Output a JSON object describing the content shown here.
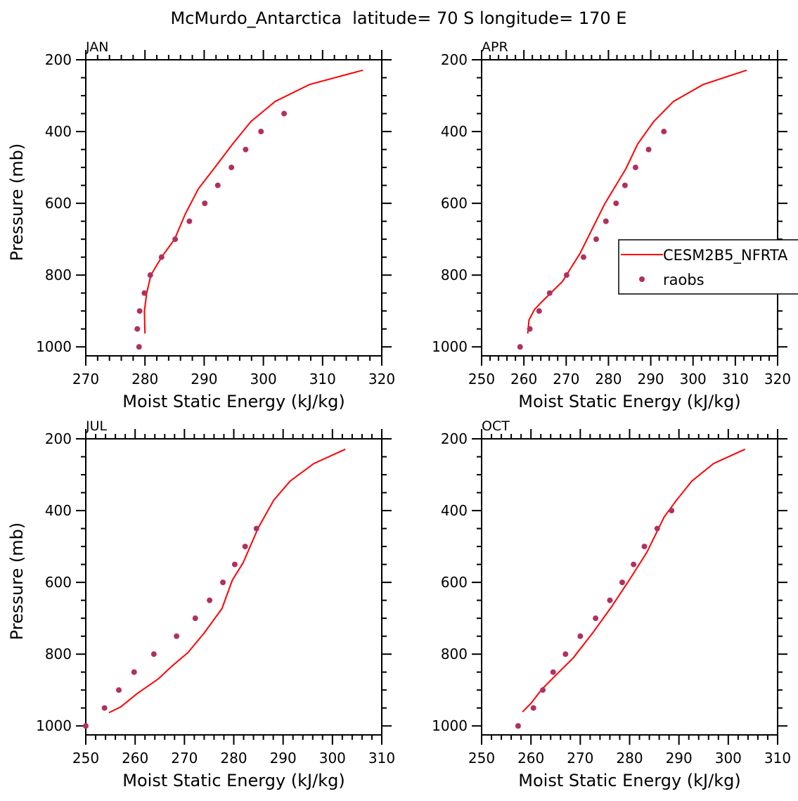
{
  "chart_data": {
    "title": "McMurdo_Antarctica  latitude= 70 S longitude= 170 E",
    "legend": {
      "placement": "right of APR panel",
      "entries": [
        {
          "label": "CESM2B5_NFRTA",
          "style": "line",
          "color": "#ff0000"
        },
        {
          "label": "raobs",
          "style": "marker",
          "color": "#b03060"
        }
      ]
    },
    "panels": [
      {
        "type": "line+scatter",
        "label": "JAN",
        "xlabel": "Moist Static Energy (kJ/kg)",
        "ylabel": "Pressure (mb)",
        "xlim": [
          270,
          320
        ],
        "xticks": [
          270,
          280,
          290,
          300,
          310,
          320
        ],
        "ylim": [
          200,
          1025
        ],
        "yticks": [
          200,
          400,
          600,
          800,
          1000
        ],
        "y_inverted": true,
        "model": {
          "x": [
            316.8,
            307.8,
            302.0,
            297.9,
            294.8,
            291.8,
            289.0,
            286.8,
            285.0,
            282.8,
            281.0,
            280.3,
            279.9,
            280.0
          ],
          "p": [
            229,
            269,
            316,
            372,
            435,
            500,
            560,
            630,
            700,
            750,
            800,
            850,
            900,
            963
          ]
        },
        "raobs": {
          "x": [
            303.5,
            299.6,
            297.0,
            294.6,
            292.3,
            290.1,
            287.5,
            285.1,
            282.8,
            280.9,
            279.9,
            279.1,
            278.7,
            279.0
          ],
          "p": [
            350,
            400,
            450,
            500,
            550,
            600,
            650,
            700,
            750,
            800,
            850,
            900,
            950,
            1000
          ]
        }
      },
      {
        "type": "line+scatter",
        "label": "APR",
        "xlabel": "Moist Static Energy (kJ/kg)",
        "ylabel": "",
        "xlim": [
          250,
          320
        ],
        "xticks": [
          250,
          260,
          270,
          280,
          290,
          300,
          310,
          320
        ],
        "ylim": [
          200,
          1025
        ],
        "yticks": [
          200,
          400,
          600,
          800,
          1000
        ],
        "y_inverted": true,
        "model": {
          "x": [
            312.7,
            302.4,
            295.4,
            290.7,
            286.9,
            284.1,
            279.1,
            273.3,
            269.1,
            264.1,
            262.5,
            261.2,
            260.9
          ],
          "p": [
            229,
            269,
            316,
            372,
            435,
            504,
            602,
            739,
            818,
            876,
            896,
            925,
            963
          ]
        },
        "raobs": {
          "x": [
            293.1,
            289.5,
            286.4,
            283.9,
            281.8,
            279.4,
            277.1,
            274.1,
            270.1,
            266.1,
            263.6,
            261.4,
            259.1
          ],
          "p": [
            400,
            450,
            500,
            550,
            600,
            650,
            700,
            750,
            800,
            850,
            900,
            950,
            1000
          ]
        }
      },
      {
        "type": "line+scatter",
        "label": "JUL",
        "xlabel": "Moist Static Energy (kJ/kg)",
        "ylabel": "Pressure (mb)",
        "xlim": [
          250,
          310
        ],
        "xticks": [
          250,
          260,
          270,
          280,
          290,
          300,
          310
        ],
        "ylim": [
          200,
          1025
        ],
        "yticks": [
          200,
          400,
          600,
          800,
          1000
        ],
        "y_inverted": true,
        "model": {
          "x": [
            302.6,
            296.2,
            291.4,
            288.1,
            285.0,
            281.9,
            279.7,
            277.6,
            274.0,
            270.7,
            267.5,
            264.7,
            260.4,
            257.1,
            254.7
          ],
          "p": [
            229,
            269,
            318,
            371,
            447,
            545,
            594,
            673,
            741,
            796,
            833,
            869,
            910,
            947,
            963
          ]
        },
        "raobs": {
          "x": [
            284.6,
            282.3,
            280.2,
            277.8,
            275.1,
            272.2,
            268.4,
            263.8,
            259.8,
            256.7,
            253.8,
            250.0
          ],
          "p": [
            450,
            500,
            550,
            600,
            650,
            700,
            750,
            800,
            850,
            900,
            950,
            1000
          ]
        }
      },
      {
        "type": "line+scatter",
        "label": "OCT",
        "xlabel": "Moist Static Energy (kJ/kg)",
        "ylabel": "",
        "xlim": [
          250,
          310
        ],
        "xticks": [
          250,
          260,
          270,
          280,
          290,
          300,
          310
        ],
        "ylim": [
          200,
          1025
        ],
        "yticks": [
          200,
          400,
          600,
          800,
          1000
        ],
        "y_inverted": true,
        "model": {
          "x": [
            303.4,
            297.0,
            292.6,
            289.5,
            287.0,
            283.5,
            279.9,
            276.4,
            272.5,
            268.6,
            265.0,
            262.2,
            260.0,
            258.3
          ],
          "p": [
            229,
            269,
            318,
            371,
            418,
            516,
            594,
            667,
            741,
            810,
            859,
            898,
            937,
            961
          ]
        },
        "raobs": {
          "x": [
            288.5,
            285.6,
            283.0,
            280.8,
            278.5,
            276.0,
            273.1,
            270.0,
            267.0,
            264.5,
            262.4,
            260.5,
            257.4
          ],
          "p": [
            400,
            450,
            500,
            550,
            600,
            650,
            700,
            750,
            800,
            850,
            900,
            950,
            1000
          ]
        }
      }
    ]
  }
}
